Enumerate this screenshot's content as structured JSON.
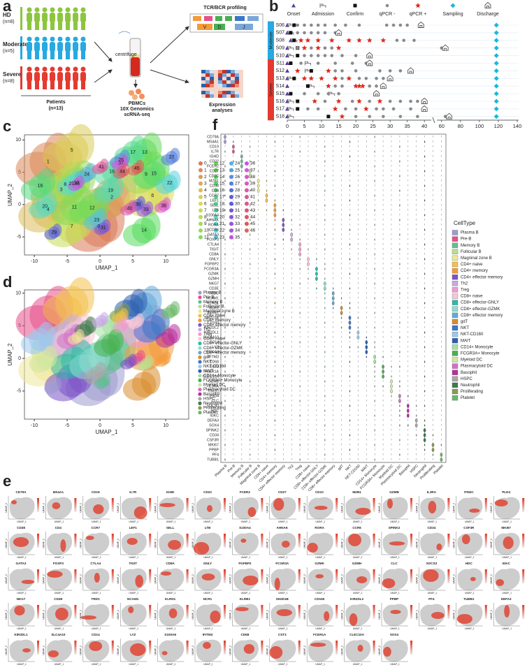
{
  "panel_labels": [
    "a",
    "b",
    "c",
    "d",
    "e",
    "f"
  ],
  "a": {
    "groups": [
      {
        "name": "HD",
        "n": "(n=8)",
        "color": "#8cc63e"
      },
      {
        "name": "Moderate",
        "n": "(n=5)",
        "color": "#27a9e1"
      },
      {
        "name": "Severe",
        "n": "(n=8)",
        "color": "#e53a2f"
      }
    ],
    "centrifuge": "centrifuge",
    "patients": [
      "Patients",
      "(n=13)"
    ],
    "pbmc": [
      "PBMCs",
      "10X Genomics",
      "scRNA-seq"
    ],
    "tcr": "TCR/BCR profiling",
    "segments": [
      "V",
      "D",
      "J"
    ],
    "expression": [
      "Expression",
      "analyses"
    ]
  },
  "b": {
    "legend": [
      "Onset",
      "Admission",
      "Confirm",
      "qPCR -",
      "qPCR +",
      "Sampling",
      "Discharge"
    ],
    "groups": [
      {
        "name": "Moderate",
        "color": "#27a9e1"
      },
      {
        "name": "Severe",
        "color": "#e53a2f"
      }
    ],
    "xlim": [
      0,
      140
    ],
    "axis_break": [
      42,
      55
    ],
    "xticks": [
      0,
      5,
      10,
      15,
      20,
      25,
      30,
      35,
      40,
      60,
      80,
      100,
      120,
      140
    ],
    "patients": [
      {
        "id": "S06",
        "group": 0,
        "onset": 0,
        "admission": 1,
        "confirm": 2,
        "qpcr_neg": [
          3,
          5,
          7,
          9,
          11,
          14,
          17,
          21,
          29,
          31,
          33,
          35
        ],
        "qpcr_pos": [],
        "sampling": 118,
        "discharge": 39
      },
      {
        "id": "S07",
        "group": 0,
        "onset": 0,
        "admission": 1,
        "confirm": 1,
        "qpcr_neg": [
          3,
          5,
          7,
          9,
          11,
          14
        ],
        "qpcr_pos": [],
        "sampling": 118,
        "discharge": 15
      },
      {
        "id": "S08",
        "group": 0,
        "onset": 1,
        "admission": 2,
        "confirm": 2,
        "qpcr_neg": [
          32,
          34,
          37
        ],
        "qpcr_pos": [
          4,
          6,
          9,
          13,
          18,
          21,
          24,
          28
        ],
        "sampling": 118
      },
      {
        "id": "S09",
        "group": 0,
        "onset": 0,
        "admission": 1,
        "confirm": 3,
        "qpcr_neg": [
          3,
          7,
          11,
          13,
          60
        ],
        "qpcr_pos": [
          5,
          9,
          15
        ],
        "sampling": 118,
        "discharge": 64
      },
      {
        "id": "S10",
        "group": 0,
        "onset": 0,
        "admission": 1,
        "confirm": 3,
        "qpcr_neg": [
          5,
          7,
          9,
          11,
          13,
          16,
          20
        ],
        "qpcr_pos": [],
        "sampling": 118,
        "discharge": 24
      },
      {
        "id": "S11",
        "group": 1,
        "onset": 0,
        "admission": 6,
        "confirm": 1,
        "qpcr_neg": [
          4,
          9,
          14,
          19,
          23
        ],
        "qpcr_pos": [],
        "sampling": 118,
        "discharge": 24
      },
      {
        "id": "S12",
        "group": 1,
        "onset": 0,
        "admission": 6,
        "confirm": 7,
        "qpcr_neg": [
          14,
          16,
          20,
          27,
          30,
          33
        ],
        "qpcr_pos": [
          3,
          12
        ],
        "sampling": 118,
        "discharge": 36
      },
      {
        "id": "S13",
        "group": 1,
        "onset": 0,
        "admission": 1,
        "confirm": 2,
        "qpcr_neg": [
          16,
          21,
          23,
          26,
          28
        ],
        "qpcr_pos": [
          5,
          7,
          10,
          14,
          18
        ],
        "sampling": 118,
        "discharge": 30
      },
      {
        "id": "S14",
        "group": 1,
        "onset": 0,
        "admission": 7,
        "confirm": 6,
        "qpcr_neg": [
          14,
          16,
          24,
          26
        ],
        "qpcr_pos": [
          12,
          20,
          21,
          22
        ],
        "sampling": 118,
        "discharge": 28
      },
      {
        "id": "S15",
        "group": 1,
        "onset": 0,
        "admission": 13,
        "confirm": 1,
        "qpcr_neg": [
          5,
          9,
          12,
          15
        ],
        "qpcr_pos": [],
        "sampling": 118,
        "discharge": 26
      },
      {
        "id": "S16",
        "group": 1,
        "onset": 0,
        "admission": 1,
        "confirm": 3,
        "qpcr_neg": [
          11,
          19,
          24,
          30,
          33,
          36,
          38
        ],
        "qpcr_pos": [
          8,
          15,
          21,
          27
        ],
        "sampling": 118,
        "discharge": 40
      },
      {
        "id": "S17",
        "group": 1,
        "onset": 0,
        "admission": 1,
        "confirm": 3,
        "qpcr_neg": [
          6,
          9,
          17,
          20,
          26,
          28,
          31,
          36
        ],
        "qpcr_pos": [
          14,
          23
        ],
        "sampling": 118,
        "discharge": 40
      },
      {
        "id": "S18",
        "group": 1,
        "onset": 0,
        "admission": 1,
        "confirm": 12,
        "qpcr_neg": [
          20,
          24,
          28,
          33,
          38,
          64,
          66
        ],
        "qpcr_pos": [
          16
        ],
        "sampling": 118,
        "discharge": 68
      }
    ]
  },
  "c": {
    "xlabel": "UMAP_1",
    "ylabel": "UMAP_2",
    "xlim": [
      -11.5,
      13.5
    ],
    "ylim": [
      -7.8,
      10.8
    ],
    "xticks": [
      -10,
      -5,
      0,
      5,
      10
    ],
    "yticks": [
      -5,
      0,
      5,
      10
    ],
    "clusters": [
      "0",
      "1",
      "2",
      "3",
      "4",
      "5",
      "6",
      "7",
      "8",
      "9",
      "10",
      "11",
      "12",
      "13",
      "14",
      "15",
      "16",
      "17",
      "18",
      "19",
      "20",
      "21",
      "22",
      "23",
      "24",
      "25",
      "26",
      "27",
      "28",
      "29",
      "30",
      "31",
      "32",
      "33",
      "34",
      "35",
      "36",
      "37",
      "38",
      "39",
      "40",
      "41",
      "42",
      "43",
      "44",
      "45",
      "46"
    ],
    "cluster_labels": [
      {
        "text": "0",
        "x": -0.2,
        "y": -3.4
      },
      {
        "text": "1",
        "x": -7.9,
        "y": 6.6
      },
      {
        "text": "2",
        "x": 1.8,
        "y": 1.1
      },
      {
        "text": "3",
        "x": -5.9,
        "y": 2.3
      },
      {
        "text": "4",
        "x": -7.9,
        "y": -0.8
      },
      {
        "text": "5",
        "x": -4.3,
        "y": 8.4
      },
      {
        "text": "6",
        "x": 8.0,
        "y": 1.4
      },
      {
        "text": "7",
        "x": -4.3,
        "y": -3.4
      },
      {
        "text": "8",
        "x": -5.3,
        "y": 3.1
      },
      {
        "text": "9",
        "x": 7.0,
        "y": 4.7
      },
      {
        "text": "10",
        "x": -3.6,
        "y": 3.4
      },
      {
        "text": "11",
        "x": -3.9,
        "y": -0.4
      },
      {
        "text": "12",
        "x": -1.2,
        "y": -0.5
      },
      {
        "text": "13",
        "x": 6.8,
        "y": 8.1
      },
      {
        "text": "14",
        "x": 6.7,
        "y": -4.0
      },
      {
        "text": "15",
        "x": 8.2,
        "y": 4.8
      },
      {
        "text": "16",
        "x": -9.1,
        "y": 2.9
      },
      {
        "text": "17",
        "x": 5.0,
        "y": 8.1
      },
      {
        "text": "18",
        "x": 1.8,
        "y": 5.1
      },
      {
        "text": "19",
        "x": 1.6,
        "y": 2.2
      },
      {
        "text": "20",
        "x": -8.4,
        "y": -0.3
      },
      {
        "text": "21",
        "x": -4.3,
        "y": 3.2
      },
      {
        "text": "22",
        "x": 10.6,
        "y": 3.3
      },
      {
        "text": "23",
        "x": -0.5,
        "y": -2.4
      },
      {
        "text": "24",
        "x": -2.0,
        "y": 4.7
      },
      {
        "text": "26",
        "x": 3.2,
        "y": 6.9
      },
      {
        "text": "27",
        "x": 10.9,
        "y": 7.3
      },
      {
        "text": "29",
        "x": -7.0,
        "y": -4.3
      },
      {
        "text": "30",
        "x": 5.8,
        "y": 0.0
      },
      {
        "text": "31",
        "x": 0.5,
        "y": -3.6
      },
      {
        "text": "33",
        "x": 7.0,
        "y": -0.8
      },
      {
        "text": "36",
        "x": -3.5,
        "y": 3.2
      },
      {
        "text": "37",
        "x": 3.2,
        "y": 6.4
      },
      {
        "text": "38",
        "x": 9.7,
        "y": -0.2
      },
      {
        "text": "40",
        "x": 4.5,
        "y": -0.6
      },
      {
        "text": "41",
        "x": 0.2,
        "y": 5.8
      },
      {
        "text": "44",
        "x": 3.4,
        "y": 5.1
      },
      {
        "text": "45",
        "x": 5.6,
        "y": 5.6
      }
    ]
  },
  "d": {
    "xlabel": "UMAP_1",
    "ylabel": "UMAP_2",
    "xlim": [
      -11.5,
      13.5
    ],
    "ylim": [
      -9.3,
      10.5
    ],
    "xticks": [
      -10,
      -5,
      0,
      5,
      10
    ],
    "yticks": [
      -5,
      0,
      5,
      10
    ]
  },
  "cell_types": [
    {
      "name": "Plasma B",
      "color": "#9e9ad0"
    },
    {
      "name": "Pre-B",
      "color": "#e8508a"
    },
    {
      "name": "Memory B",
      "color": "#5fc08e"
    },
    {
      "name": "Follicular B",
      "color": "#b8df8e"
    },
    {
      "name": "Magninal zone B",
      "color": "#eee89a"
    },
    {
      "name": "CD4+ naive",
      "color": "#f2c14e"
    },
    {
      "name": "CD4+ memory",
      "color": "#f39a3c"
    },
    {
      "name": "CD4+ effector memory",
      "color": "#7b52c6"
    },
    {
      "name": "Th2",
      "color": "#c9a8e8"
    },
    {
      "name": "Treg",
      "color": "#f29ad0"
    },
    {
      "name": "CD8+ naive",
      "color": "#f6c6d6"
    },
    {
      "name": "CD8+ effector-GNLY",
      "color": "#2fb8a8"
    },
    {
      "name": "CD8+ effector-GZMK",
      "color": "#8fdcd0"
    },
    {
      "name": "CD8+ effector memory",
      "color": "#62a8d8"
    },
    {
      "name": "gdT",
      "color": "#d98c2e"
    },
    {
      "name": "NKT",
      "color": "#3a78c8"
    },
    {
      "name": "NKT-CD160",
      "color": "#9cc8ee"
    },
    {
      "name": "MAIT",
      "color": "#2e5eb0"
    },
    {
      "name": "CD14+ Monocyte",
      "color": "#a6e0a0"
    },
    {
      "name": "FCGR3A+ Monocyte",
      "color": "#49b050"
    },
    {
      "name": "Myeloid DC",
      "color": "#cfe8a0"
    },
    {
      "name": "Plasmacytoid DC",
      "color": "#d270c8"
    },
    {
      "name": "Basophil",
      "color": "#b8309c"
    },
    {
      "name": "HSPC",
      "color": "#a8a8a8"
    },
    {
      "name": "Neutrophil",
      "color": "#3d7a4a"
    },
    {
      "name": "Proliferating",
      "color": "#8a9a50"
    },
    {
      "name": "Platelet",
      "color": "#6ab868"
    }
  ],
  "e": {
    "xlabel": "UMAP_1",
    "ylabel": "UMAP_2",
    "genes": [
      "CD79A",
      "MS4A1",
      "CD19",
      "IL7R",
      "IGHD",
      "CD22",
      "FCER2",
      "CD27",
      "CD1C",
      "MZB1",
      "GZMB",
      "IL3RA",
      "ITM2C",
      "PLD4",
      "CD38",
      "CD4",
      "CCR7",
      "LEF1",
      "SELL",
      "LTB",
      "S100A4",
      "AHNAK",
      "RORA",
      "CCR6",
      "SPINK2",
      "CD34",
      "CSF3R",
      "MKI67",
      "GATA3",
      "FOXP3",
      "CTLA4",
      "TIGIT",
      "CD8A",
      "GNLY",
      "FGFBP2",
      "FCGR3A",
      "GZMK",
      "GZMH",
      "CLC",
      "SOCS3",
      "HDC",
      "IGKC",
      "NKG7",
      "CD3E",
      "TRDC",
      "NCAM1",
      "KLRD1",
      "NCR1",
      "KLRB1",
      "SH2D1B",
      "CD160",
      "KIR2DL2",
      "PPBP",
      "PF4",
      "TUBB1",
      "DEFA3",
      "KIR2DL1",
      "SLC4A10",
      "CD14",
      "LYZ",
      "S100A8",
      "IFITM3",
      "CD68",
      "CST3",
      "FCER1A",
      "CLEC10A",
      "SOX4"
    ]
  },
  "f": {
    "legend_title": "CellType",
    "genes": [
      "CD79A",
      "MS4A1",
      "CD19",
      "IL7R",
      "IGHD",
      "CD22",
      "FCER2",
      "CD27",
      "CD1C",
      "MZB1",
      "CD38",
      "CD4",
      "CCR7",
      "LEF1",
      "SELL",
      "LTB",
      "S100A4",
      "AHNAK",
      "RORA",
      "CCR6",
      "GATA3",
      "FOXP3",
      "CTLA4",
      "TIGIT",
      "CD8A",
      "GNLY",
      "FGFBP2",
      "FCGR3A",
      "GZMK",
      "GZMH",
      "NKG7",
      "CD3E",
      "TRDC",
      "NCAM1",
      "KLRD1",
      "NCR1",
      "KLRB1",
      "SH2D1B",
      "CD160",
      "KIR2DL2",
      "KIR2DL1",
      "SLC4A10",
      "CD14",
      "LYZ",
      "S100A8",
      "IFITM3",
      "CD68",
      "CST3",
      "FCER1A",
      "CLEC10A",
      "GZMB",
      "IL3RA",
      "ITM2C",
      "PLD4",
      "CLC",
      "SOCS3",
      "HDC",
      "IGKC",
      "DEFA3",
      "SOX4",
      "SPINK2",
      "CD34",
      "CSF3R",
      "MKI67",
      "PPBP",
      "PF4",
      "TUBB1"
    ]
  }
}
